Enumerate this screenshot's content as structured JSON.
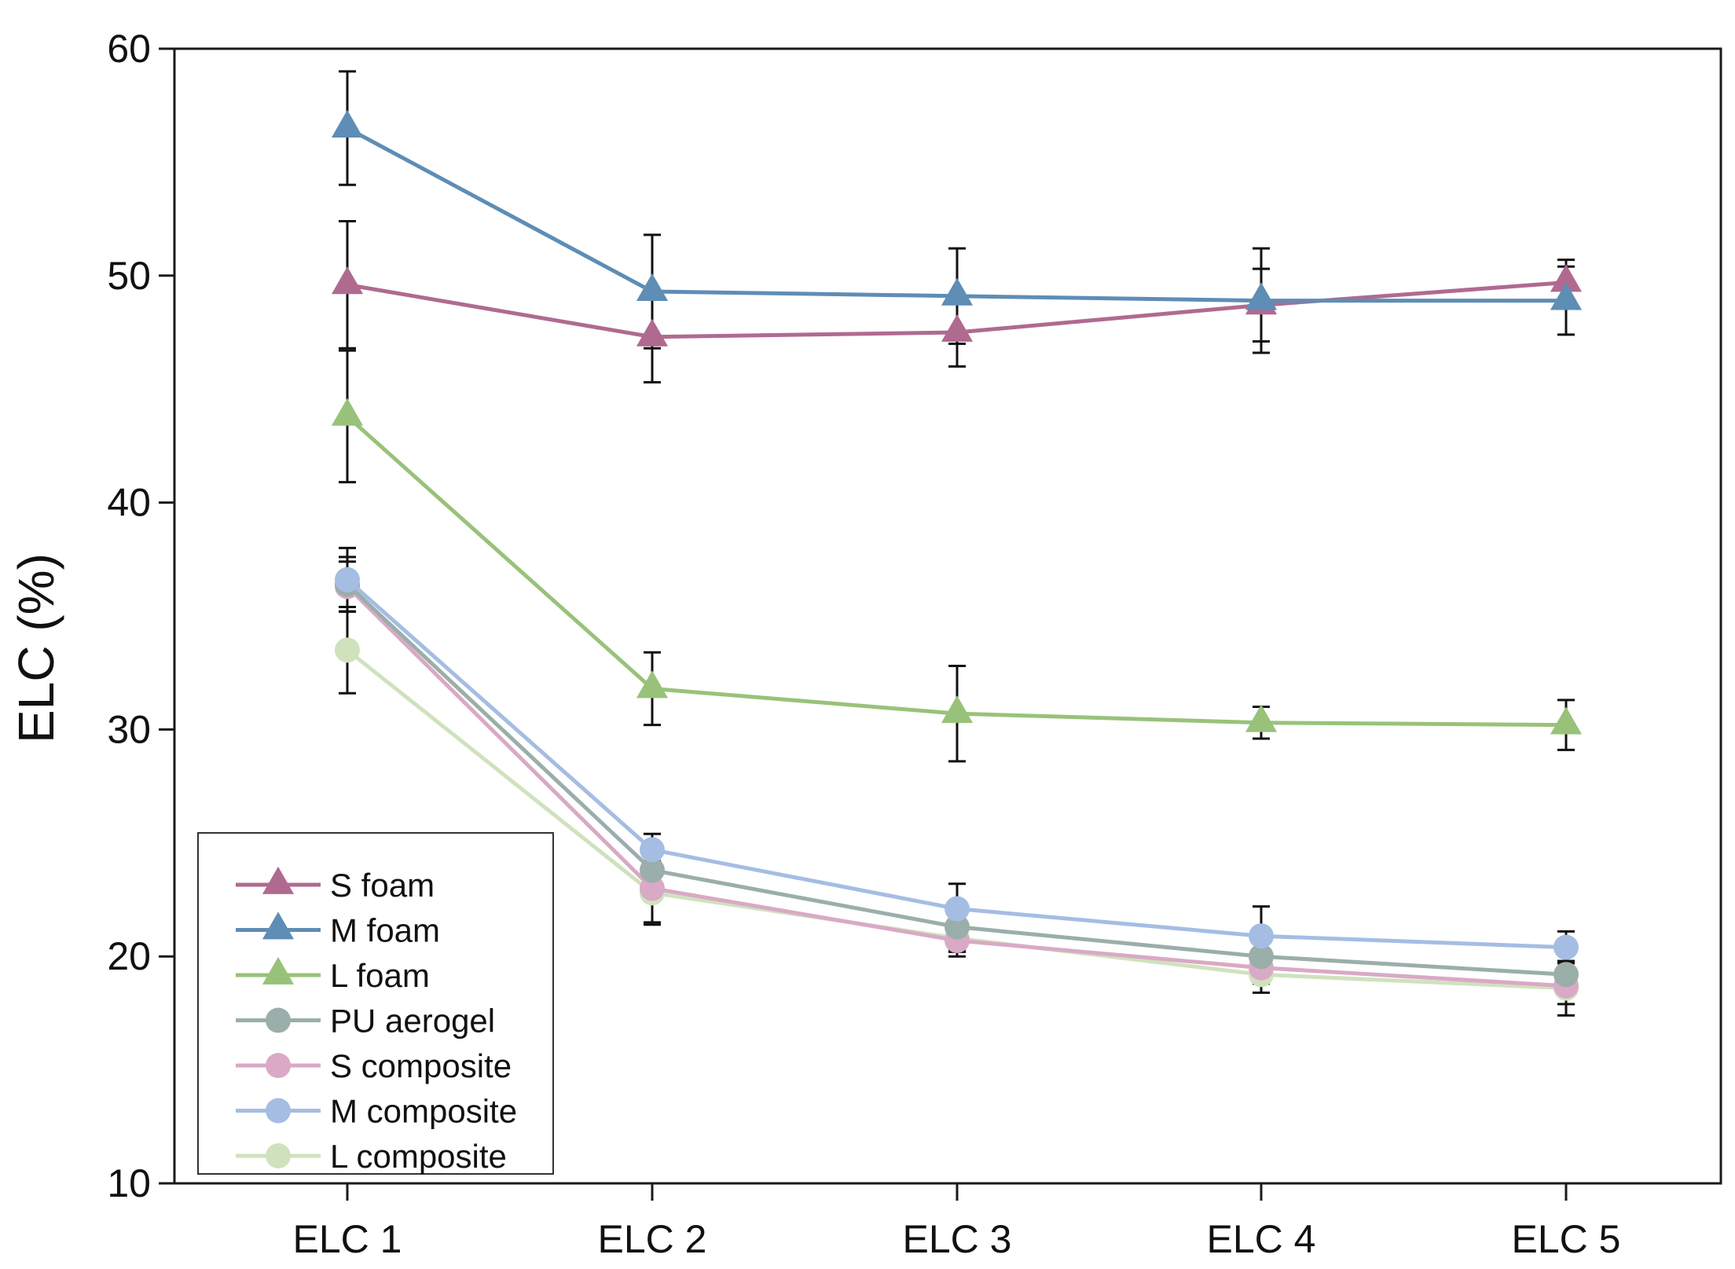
{
  "chart_data": {
    "type": "line",
    "title": "",
    "xlabel": "",
    "ylabel": "ELC (%)",
    "categories": [
      "ELC 1",
      "ELC 2",
      "ELC 3",
      "ELC 4",
      "ELC 5"
    ],
    "ylim": [
      10,
      60
    ],
    "yticks": [
      "10",
      "20",
      "30",
      "40",
      "50",
      "60"
    ],
    "grid": false,
    "legend_position": "bottom-left",
    "series": [
      {
        "name": "S foam",
        "marker": "triangle",
        "color": "#b06a90",
        "values": [
          49.6,
          47.3,
          47.5,
          48.7,
          49.7
        ],
        "errors": [
          2.8,
          2.0,
          1.5,
          1.6,
          1.0
        ]
      },
      {
        "name": "M foam",
        "marker": "triangle",
        "color": "#5e8db5",
        "values": [
          56.5,
          49.3,
          49.1,
          48.9,
          48.9
        ],
        "errors": [
          2.5,
          2.5,
          2.1,
          2.3,
          1.5
        ]
      },
      {
        "name": "L foam",
        "marker": "triangle",
        "color": "#98c27a",
        "values": [
          43.8,
          31.8,
          30.7,
          30.3,
          30.2
        ],
        "errors": [
          2.9,
          1.6,
          2.1,
          0.7,
          1.1
        ]
      },
      {
        "name": "PU aerogel",
        "marker": "circle",
        "color": "#9aaeaa",
        "values": [
          36.4,
          23.8,
          21.3,
          20.0,
          19.2
        ],
        "errors": [
          1.2,
          1.0,
          1.0,
          1.1,
          0.9
        ]
      },
      {
        "name": "S composite",
        "marker": "circle",
        "color": "#d9a9c5",
        "values": [
          36.3,
          23.0,
          20.7,
          19.5,
          18.7
        ],
        "errors": [
          1.1,
          1.5,
          0.7,
          0.7,
          0.8
        ]
      },
      {
        "name": "M composite",
        "marker": "circle",
        "color": "#a5bde3",
        "values": [
          36.6,
          24.7,
          22.1,
          20.9,
          20.4
        ],
        "errors": [
          1.4,
          0.7,
          1.1,
          1.3,
          0.7
        ]
      },
      {
        "name": "L composite",
        "marker": "circle",
        "color": "#cfe2bd",
        "values": [
          33.5,
          22.8,
          20.8,
          19.2,
          18.6
        ],
        "errors": [
          1.9,
          1.4,
          0.6,
          0.8,
          1.2
        ]
      }
    ]
  }
}
